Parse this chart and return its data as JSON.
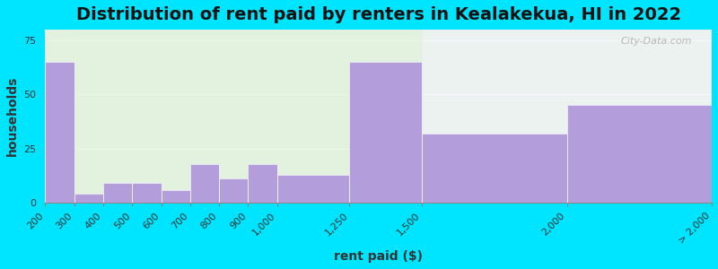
{
  "title": "Distribution of rent paid by renters in Kealakekua, HI in 2022",
  "xlabel": "rent paid ($)",
  "ylabel": "households",
  "edges": [
    200,
    300,
    400,
    500,
    600,
    700,
    800,
    900,
    1000,
    1250,
    1500,
    2000,
    2500
  ],
  "tick_labels": [
    "200",
    "300",
    "400",
    "500",
    "600",
    "700",
    "800",
    "900",
    "1,000",
    "1,250",
    "1,500",
    "2,000",
    "> 2,000"
  ],
  "values": [
    65,
    4,
    9,
    9,
    6,
    18,
    11,
    18,
    13,
    65,
    32,
    45
  ],
  "bar_color": "#b39ddb",
  "background_outer": "#00e5ff",
  "background_inner_left": "#e8f5e9",
  "background_inner_right": "#f0f0f8",
  "ylim": [
    0,
    80
  ],
  "yticks": [
    0,
    25,
    50,
    75
  ],
  "title_fontsize": 14,
  "axis_label_fontsize": 10,
  "tick_fontsize": 8,
  "watermark": "City-Data.com"
}
